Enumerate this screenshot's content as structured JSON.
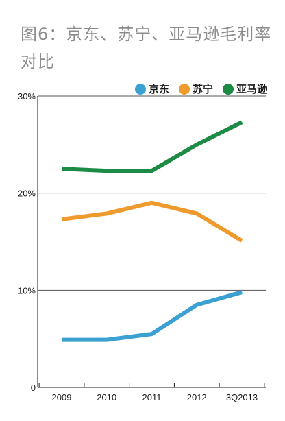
{
  "title": "图6：京东、苏宁、亚马逊毛利率对比",
  "chart_data": {
    "type": "line",
    "title": "图6：京东、苏宁、亚马逊毛利率对比",
    "categories": [
      "2009",
      "2010",
      "2011",
      "2012",
      "3Q2013"
    ],
    "y_tick_labels": [
      "0",
      "10%",
      "20%",
      "30%"
    ],
    "y_ticks": [
      0,
      10,
      20,
      30
    ],
    "ylim": [
      0,
      30
    ],
    "grid": true,
    "legend_position": "top-right",
    "series": [
      {
        "name": "京东",
        "color": "#3ba0d2",
        "values": [
          4.9,
          4.9,
          5.5,
          8.5,
          9.8
        ]
      },
      {
        "name": "苏宁",
        "color": "#ef9a2c",
        "values": [
          17.3,
          17.9,
          19.0,
          17.9,
          15.1
        ]
      },
      {
        "name": "亚马逊",
        "color": "#1c8b45",
        "values": [
          22.5,
          22.3,
          22.3,
          25.0,
          27.3
        ]
      }
    ]
  }
}
